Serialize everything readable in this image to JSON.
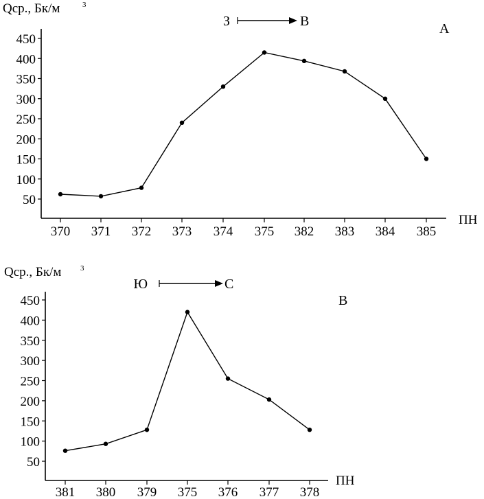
{
  "chart_data": [
    {
      "type": "line",
      "panel_label": "A",
      "ylabel": "Qср., Бк/м",
      "ylabel_superscript": "3",
      "xlabel": "ПН",
      "direction": {
        "from": "З",
        "to": "В"
      },
      "categories": [
        "370",
        "371",
        "372",
        "373",
        "374",
        "375",
        "382",
        "383",
        "384",
        "385"
      ],
      "values": [
        62,
        57,
        78,
        240,
        330,
        415,
        394,
        368,
        300,
        150
      ],
      "yticks": [
        50,
        100,
        150,
        200,
        250,
        300,
        350,
        400,
        450
      ],
      "ylim": [
        0,
        480
      ],
      "grid": false
    },
    {
      "type": "line",
      "panel_label": "B",
      "ylabel": "Qср., Бк/м",
      "ylabel_superscript": "3",
      "xlabel": "ПН",
      "direction": {
        "from": "Ю",
        "to": "С"
      },
      "categories": [
        "381",
        "380",
        "379",
        "375",
        "376",
        "377",
        "378"
      ],
      "values": [
        76,
        93,
        128,
        420,
        255,
        203,
        128
      ],
      "yticks": [
        50,
        100,
        150,
        200,
        250,
        300,
        350,
        400,
        450
      ],
      "ylim": [
        0,
        480
      ],
      "grid": false
    }
  ]
}
